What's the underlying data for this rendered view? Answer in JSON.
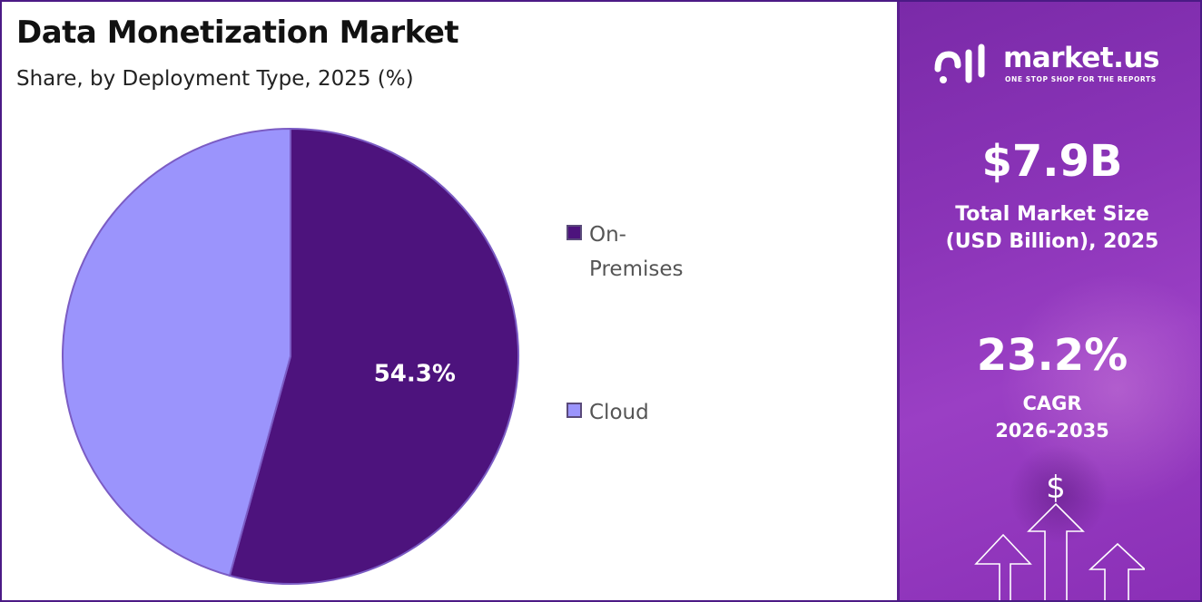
{
  "title": "Data Monetization Market",
  "subtitle": "Share, by Deployment Type, 2025 (%)",
  "chart_data": {
    "type": "pie",
    "categories": [
      "On-Premises",
      "Cloud"
    ],
    "values": [
      54.3,
      45.7
    ],
    "data_labels": [
      "54.3%",
      ""
    ],
    "legend_placement": "right",
    "colors": [
      "#4d137d",
      "#9b94fc"
    ]
  },
  "legend": {
    "items": [
      {
        "label": "On-Premises",
        "color": "#4d137d"
      },
      {
        "label": "Cloud",
        "color": "#9b94fc"
      }
    ]
  },
  "side_panel": {
    "brand": "market.us",
    "tagline": "ONE STOP SHOP FOR THE REPORTS",
    "market_size_value": "$7.9B",
    "market_size_label_line1": "Total Market Size",
    "market_size_label_line2": "(USD Billion), 2025",
    "cagr_value": "23.2%",
    "cagr_label_line1": "CAGR",
    "cagr_label_line2": "2026-2035",
    "decor_icon": "dollar-rising-arrows-icon",
    "currency_symbol": "$",
    "accent_color": "#8b34b8"
  }
}
